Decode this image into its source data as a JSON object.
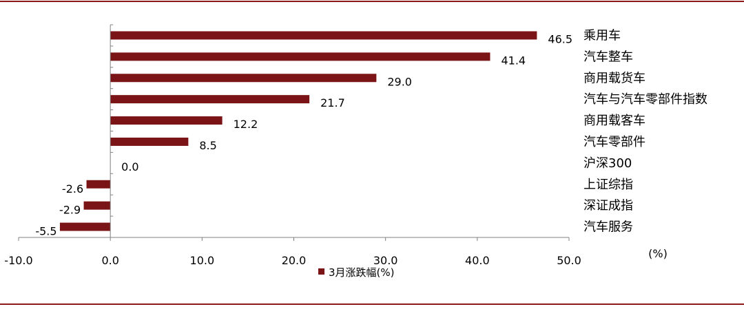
{
  "colors": {
    "frame": "#8b1a1a",
    "bar": "#7b1416",
    "axis": "#808080",
    "text": "#000000"
  },
  "chart_data": {
    "type": "bar",
    "orientation": "horizontal",
    "categories": [
      "乘用车",
      "汽车整车",
      "商用载货车",
      "汽车与汽车零部件指数",
      "商用载客车",
      "汽车零部件",
      "沪深300",
      "上证综指",
      "深证成指",
      "汽车服务"
    ],
    "series": [
      {
        "name": "3月涨跌幅(%)",
        "values": [
          46.5,
          41.4,
          29.0,
          21.7,
          12.2,
          8.5,
          0.0,
          -2.6,
          -2.9,
          -5.5
        ]
      }
    ],
    "data_labels": [
      "46.5",
      "41.4",
      "29.0",
      "21.7",
      "12.2",
      "8.5",
      "0.0",
      "-2.6",
      "-2.9",
      "-5.5"
    ],
    "xlim": [
      -10,
      50
    ],
    "xticks": [
      -10,
      0,
      10,
      20,
      30,
      40,
      50
    ],
    "xtick_labels": [
      "-10.0",
      "0.0",
      "10.0",
      "20.0",
      "30.0",
      "40.0",
      "50.0"
    ],
    "unit_label": "(%)",
    "legend_position": "bottom",
    "grid": false
  }
}
